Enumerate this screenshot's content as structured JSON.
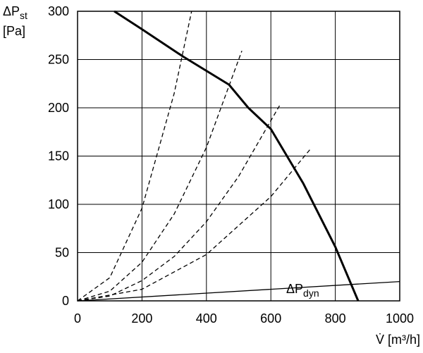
{
  "chart_data": {
    "type": "line",
    "ylabel": {
      "symbol": "ΔP",
      "subscript": "st",
      "unit": "[Pa]"
    },
    "xlabel": "V̇ [m³/h]",
    "xlim": [
      0,
      1000
    ],
    "xticks": [
      0,
      200,
      400,
      600,
      800,
      1000
    ],
    "ylim": [
      0,
      300
    ],
    "yticks": [
      0,
      50,
      100,
      150,
      200,
      250,
      300
    ],
    "grid": true,
    "series": [
      {
        "style": "bold",
        "color": "#000000",
        "x": [
          114,
          197,
          328,
          470,
          530,
          600,
          700,
          800,
          871
        ],
        "values": [
          300,
          282,
          253,
          224,
          200,
          178,
          122,
          56,
          0
        ]
      },
      {
        "style": "dashed",
        "color": "#000000",
        "x": [
          0,
          100,
          200,
          300,
          354
        ],
        "values": [
          0,
          24,
          96,
          215,
          300
        ]
      },
      {
        "style": "dashed",
        "color": "#000000",
        "x": [
          0,
          100,
          200,
          300,
          400,
          510
        ],
        "values": [
          0,
          10,
          40,
          90,
          159,
          259
        ]
      },
      {
        "style": "dashed",
        "color": "#000000",
        "x": [
          0,
          100,
          200,
          300,
          400,
          500,
          630
        ],
        "values": [
          0,
          5,
          21,
          46,
          82,
          129,
          204
        ]
      },
      {
        "style": "dashed",
        "color": "#000000",
        "x": [
          0,
          200,
          400,
          600,
          722
        ],
        "values": [
          0,
          12,
          48,
          108,
          157
        ]
      },
      {
        "style": "thin",
        "color": "#000000",
        "x": [
          0,
          1000
        ],
        "values": [
          0,
          20
        ]
      }
    ],
    "annotation": {
      "symbol": "ΔP",
      "subscript": "dyn"
    }
  }
}
